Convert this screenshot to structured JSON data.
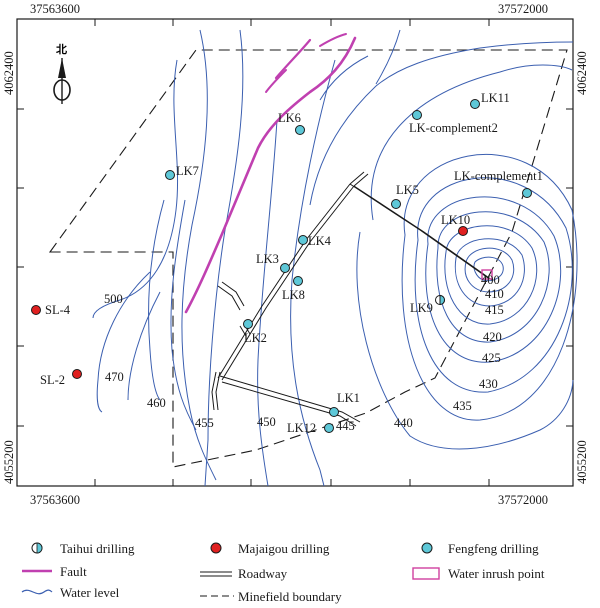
{
  "coords": {
    "top_left": "37563600",
    "top_right": "37572000",
    "bottom_left": "37563600",
    "bottom_right": "37572000",
    "left_top": "4062400",
    "left_bottom": "4055200",
    "right_top": "4062400",
    "right_bottom": "4055200"
  },
  "north_label": "北",
  "colors": {
    "water_level": "#3b5fb0",
    "fault": "#c040b0",
    "fengfeng": "#5ec8d8",
    "majaigou": "#e02020",
    "inrush": "#d040a0"
  },
  "drillings": {
    "LK1": "LK1",
    "LK2": "LK2",
    "LK3": "LK3",
    "LK4": "LK4",
    "LK5": "LK5",
    "LK6": "LK6",
    "LK7": "LK7",
    "LK8": "LK8",
    "LK9": "LK9",
    "LK10": "LK10",
    "LK11": "LK11",
    "LK12": "LK12",
    "LKc1": "LK-complement1",
    "LKc2": "LK-complement2",
    "SL4": "SL-4",
    "SL2": "SL-2"
  },
  "contours": {
    "c400": "400",
    "c410": "410",
    "c415": "415",
    "c420": "420",
    "c425": "425",
    "c430": "430",
    "c435": "435",
    "c440": "440",
    "c445": "445",
    "c450": "450",
    "c455": "455",
    "c460": "460",
    "c470": "470",
    "c500": "500"
  },
  "legend": {
    "taihui": "Taihui drilling",
    "majaigou": "Majaigou drilling",
    "fengfeng": "Fengfeng drilling",
    "fault": "Fault",
    "roadway": "Roadway",
    "inrush": "Water inrush point",
    "water_level": "Water level",
    "boundary": "Minefield boundary"
  }
}
